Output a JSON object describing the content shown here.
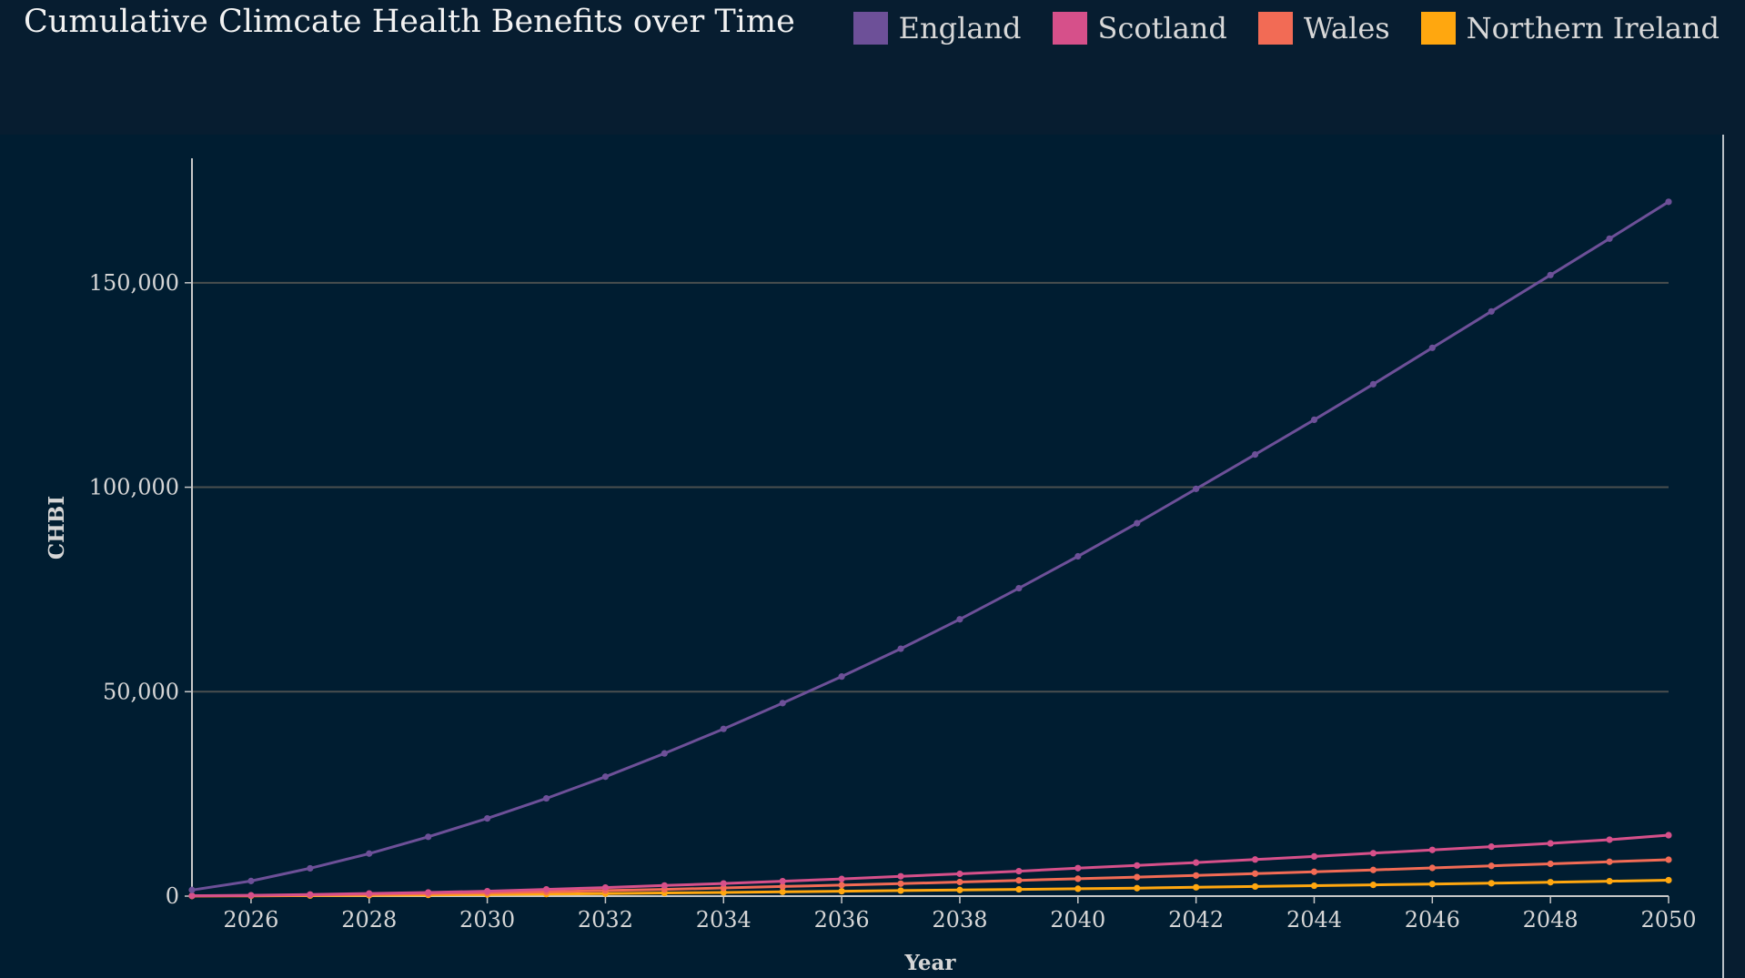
{
  "title": "Cumulative Climcate Health Benefits over Time",
  "legend": [
    {
      "name": "England",
      "color": "#6d5098"
    },
    {
      "name": "Scotland",
      "color": "#d6508a"
    },
    {
      "name": "Wales",
      "color": "#f26b55"
    },
    {
      "name": "Northern Ireland",
      "color": "#ffa70f"
    }
  ],
  "chart_data": {
    "type": "line",
    "title": "Cumulative Climcate Health Benefits over Time",
    "xlabel": "Year",
    "ylabel": "CHBI",
    "xlim": [
      2025,
      2050
    ],
    "ylim": [
      0,
      180000
    ],
    "x_ticks": [
      "2026",
      "2028",
      "2030",
      "2032",
      "2034",
      "2036",
      "2038",
      "2040",
      "2042",
      "2044",
      "2046",
      "2048",
      "2050"
    ],
    "y_ticks": [
      "0",
      "50,000",
      "100,000",
      "150,000"
    ],
    "y_tick_values": [
      0,
      50000,
      100000,
      150000
    ],
    "grid": "horizontal",
    "legend_position": "top-right",
    "x": [
      2025,
      2026,
      2027,
      2028,
      2029,
      2030,
      2031,
      2032,
      2033,
      2034,
      2035,
      2036,
      2037,
      2038,
      2039,
      2040,
      2041,
      2042,
      2043,
      2044,
      2045,
      2046,
      2047,
      2048,
      2049,
      2050
    ],
    "series": [
      {
        "name": "England",
        "color": "#6d5098",
        "values": [
          1500,
          3700,
          6800,
          10400,
          14500,
          19000,
          23900,
          29200,
          34900,
          40900,
          47200,
          53700,
          60500,
          67700,
          75300,
          83100,
          91200,
          99600,
          108000,
          116500,
          125200,
          134100,
          143000,
          151900,
          160800,
          169800
        ]
      },
      {
        "name": "Scotland",
        "color": "#d6508a",
        "values": [
          80,
          200,
          400,
          650,
          900,
          1200,
          1650,
          2100,
          2600,
          3100,
          3650,
          4200,
          4850,
          5450,
          6100,
          6850,
          7500,
          8200,
          8950,
          9700,
          10500,
          11300,
          12100,
          12900,
          13800,
          14900
        ]
      },
      {
        "name": "Wales",
        "color": "#f26b55",
        "values": [
          60,
          140,
          280,
          420,
          600,
          800,
          1050,
          1350,
          1650,
          2000,
          2350,
          2700,
          3050,
          3450,
          3850,
          4250,
          4650,
          5050,
          5500,
          5950,
          6400,
          6900,
          7400,
          7900,
          8400,
          8900
        ]
      },
      {
        "name": "Northern Ireland",
        "color": "#ffa70f",
        "values": [
          30,
          70,
          130,
          200,
          290,
          390,
          500,
          630,
          770,
          900,
          1050,
          1200,
          1350,
          1500,
          1650,
          1800,
          1950,
          2150,
          2350,
          2550,
          2750,
          2950,
          3150,
          3400,
          3650,
          3900
        ]
      }
    ]
  }
}
